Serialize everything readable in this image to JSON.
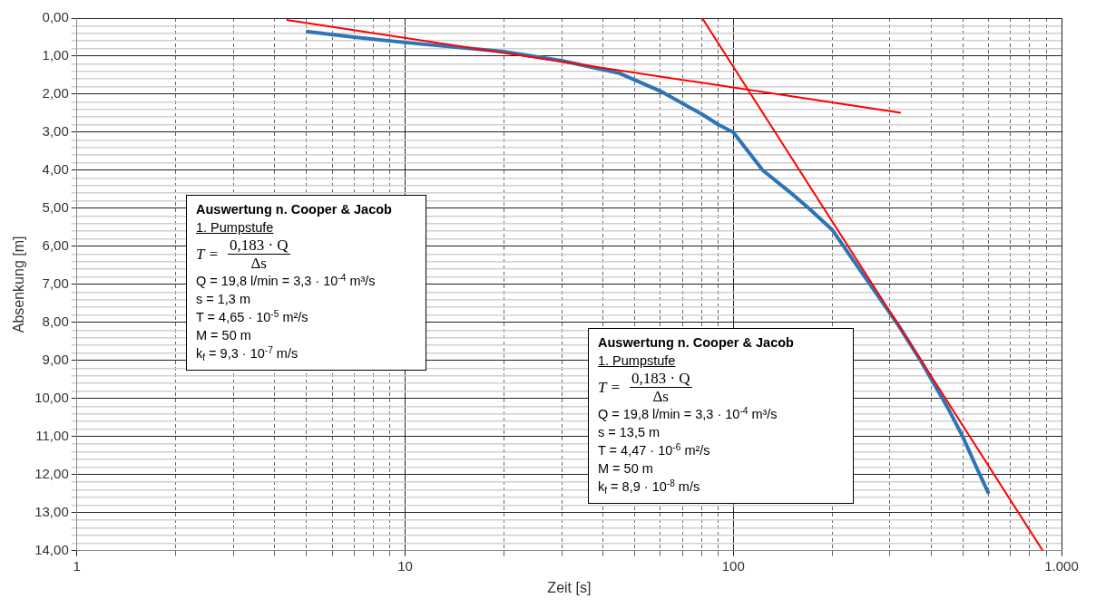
{
  "chart_data": {
    "type": "line",
    "xlabel": "Zeit [s]",
    "ylabel": "Absenkung [m]",
    "log": "x",
    "grid": true,
    "legend": false,
    "marker": "none",
    "line_style": "solid",
    "xlim": [
      1,
      1000
    ],
    "xticks": [
      1,
      {
        "value": 2,
        "label": null
      },
      {
        "value": 3,
        "label": null
      },
      {
        "value": 4,
        "label": null
      },
      {
        "value": 5,
        "label": null
      },
      {
        "value": 6,
        "label": null
      },
      {
        "value": 7,
        "label": null
      },
      {
        "value": 8,
        "label": null
      },
      {
        "value": 9,
        "label": null
      },
      10,
      {
        "value": 20,
        "label": null
      },
      {
        "value": 30,
        "label": null
      },
      {
        "value": 40,
        "label": null
      },
      {
        "value": 50,
        "label": null
      },
      {
        "value": 60,
        "label": null
      },
      {
        "value": 70,
        "label": null
      },
      {
        "value": 80,
        "label": null
      },
      {
        "value": 90,
        "label": null
      },
      100,
      {
        "value": 200,
        "label": null
      },
      {
        "value": 300,
        "label": null
      },
      {
        "value": 400,
        "label": null
      },
      {
        "value": 500,
        "label": null
      },
      {
        "value": 600,
        "label": null
      },
      {
        "value": 700,
        "label": null
      },
      {
        "value": 800,
        "label": null
      },
      {
        "value": 900,
        "label": null
      },
      {
        "value": 1000,
        "label": "1.000"
      }
    ],
    "ylim": [
      14,
      0
    ],
    "yticks": [
      {
        "value": 0,
        "label": "0,00"
      },
      {
        "value": 0.2,
        "label": null
      },
      {
        "value": 0.4,
        "label": null
      },
      {
        "value": 0.6,
        "label": null
      },
      {
        "value": 0.8,
        "label": null
      },
      {
        "value": 1,
        "label": "1,00"
      },
      {
        "value": 1.2,
        "label": null
      },
      {
        "value": 1.4,
        "label": null
      },
      {
        "value": 1.6,
        "label": null
      },
      {
        "value": 1.8,
        "label": null
      },
      {
        "value": 2,
        "label": "2,00"
      },
      {
        "value": 2.2,
        "label": null
      },
      {
        "value": 2.4,
        "label": null
      },
      {
        "value": 2.6,
        "label": null
      },
      {
        "value": 2.8,
        "label": null
      },
      {
        "value": 3,
        "label": "3,00"
      },
      {
        "value": 3.2,
        "label": null
      },
      {
        "value": 3.4,
        "label": null
      },
      {
        "value": 3.6,
        "label": null
      },
      {
        "value": 3.8,
        "label": null
      },
      {
        "value": 4,
        "label": "4,00"
      },
      {
        "value": 4.2,
        "label": null
      },
      {
        "value": 4.4,
        "label": null
      },
      {
        "value": 4.6,
        "label": null
      },
      {
        "value": 4.8,
        "label": null
      },
      {
        "value": 5,
        "label": "5,00"
      },
      {
        "value": 5.2,
        "label": null
      },
      {
        "value": 5.4,
        "label": null
      },
      {
        "value": 5.6,
        "label": null
      },
      {
        "value": 5.8,
        "label": null
      },
      {
        "value": 6,
        "label": "6,00"
      },
      {
        "value": 6.2,
        "label": null
      },
      {
        "value": 6.4,
        "label": null
      },
      {
        "value": 6.6,
        "label": null
      },
      {
        "value": 6.8,
        "label": null
      },
      {
        "value": 7,
        "label": "7,00"
      },
      {
        "value": 7.2,
        "label": null
      },
      {
        "value": 7.4,
        "label": null
      },
      {
        "value": 7.6,
        "label": null
      },
      {
        "value": 7.8,
        "label": null
      },
      {
        "value": 8,
        "label": "8,00"
      },
      {
        "value": 8.2,
        "label": null
      },
      {
        "value": 8.4,
        "label": null
      },
      {
        "value": 8.6,
        "label": null
      },
      {
        "value": 8.8,
        "label": null
      },
      {
        "value": 9,
        "label": "9,00"
      },
      {
        "value": 9.2,
        "label": null
      },
      {
        "value": 9.4,
        "label": null
      },
      {
        "value": 9.6,
        "label": null
      },
      {
        "value": 9.8,
        "label": null
      },
      {
        "value": 10,
        "label": "10,00"
      },
      {
        "value": 10.2,
        "label": null
      },
      {
        "value": 10.4,
        "label": null
      },
      {
        "value": 10.6,
        "label": null
      },
      {
        "value": 10.8,
        "label": null
      },
      {
        "value": 11,
        "label": "11,00"
      },
      {
        "value": 11.2,
        "label": null
      },
      {
        "value": 11.4,
        "label": null
      },
      {
        "value": 11.6,
        "label": null
      },
      {
        "value": 11.8,
        "label": null
      },
      {
        "value": 12,
        "label": "12,00"
      },
      {
        "value": 12.2,
        "label": null
      },
      {
        "value": 12.4,
        "label": null
      },
      {
        "value": 12.6,
        "label": null
      },
      {
        "value": 12.8,
        "label": null
      },
      {
        "value": 13,
        "label": "13,00"
      },
      {
        "value": 13.2,
        "label": null
      },
      {
        "value": 13.4,
        "label": null
      },
      {
        "value": 13.6,
        "label": null
      },
      {
        "value": 13.8,
        "label": null
      },
      {
        "value": 14,
        "label": "14,00"
      }
    ],
    "series": [
      {
        "type": "line",
        "color": "#2e75b6",
        "x": [
          5,
          7,
          10,
          15,
          20,
          30,
          40,
          45,
          60,
          80,
          90,
          100,
          123,
          150,
          170,
          200,
          260,
          320,
          375,
          450,
          500,
          550,
          600
        ],
        "values": [
          0.35,
          0.5,
          0.64,
          0.78,
          0.88,
          1.12,
          1.35,
          1.45,
          1.92,
          2.52,
          2.8,
          3.0,
          4.0,
          4.6,
          5.0,
          5.56,
          6.98,
          8.1,
          9.05,
          10.24,
          11.0,
          11.8,
          12.5
        ]
      },
      {
        "type": "line",
        "color": "#ff0000",
        "x": [
          4.35,
          324
        ],
        "values": [
          0.05,
          2.49
        ]
      },
      {
        "type": "line",
        "color": "#ff0000",
        "x": [
          80.4,
          877
        ],
        "values": [
          0,
          14
        ]
      }
    ],
    "annotations": [
      "Auswertung n. Cooper & Jacob",
      "1. Pumpstufe",
      "T =",
      "0,183 · Q",
      "Δs",
      "Q = 19,8 l/min = 3,3 · 10$^{-4}$ m³/s",
      "s = 1,3 m",
      "T = 4,65 · 10$^{-5}$ m²/s",
      "M = 50 m",
      "k$_{f}$ = 9,3 · 10$^{-7}$ m/s",
      "Auswertung n. Cooper & Jacob",
      "1. Pumpstufe",
      "T =",
      "0,183 · Q",
      "Δs",
      "Q = 19,8 l/min = 3,3 · 10$^{-4}$ m³/s",
      "s = 13,5 m",
      "T = 4,47 · 10$^{-6}$ m²/s",
      "M = 50 m",
      "k$_{f}$ = 8,9 · 10$^{-8}$ m/s"
    ]
  }
}
